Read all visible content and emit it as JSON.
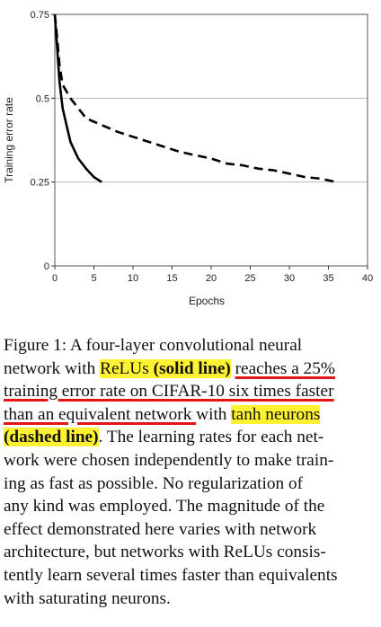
{
  "chart_data": {
    "type": "line",
    "title": "",
    "xlabel": "Epochs",
    "ylabel": "Training error rate",
    "xlim": [
      0,
      40
    ],
    "ylim": [
      0,
      0.75
    ],
    "x_ticks": [
      "0",
      "5",
      "10",
      "15",
      "20",
      "25",
      "30",
      "35",
      "40"
    ],
    "y_ticks": [
      "0",
      "0.25",
      "0.5",
      "0.75"
    ],
    "grid": "horizontal",
    "series": [
      {
        "style": "solid",
        "x": [
          0,
          0.3,
          0.6,
          1,
          1.5,
          2,
          3,
          4,
          5,
          6
        ],
        "y": [
          0.75,
          0.65,
          0.55,
          0.47,
          0.42,
          0.37,
          0.32,
          0.29,
          0.265,
          0.25
        ]
      },
      {
        "style": "dashed",
        "x": [
          0,
          0.3,
          0.6,
          1,
          2,
          3,
          4,
          5,
          6,
          8,
          10,
          12,
          14,
          16,
          18,
          20,
          22,
          24,
          26,
          28,
          30,
          32,
          34,
          36
        ],
        "y": [
          0.75,
          0.68,
          0.6,
          0.54,
          0.5,
          0.47,
          0.44,
          0.43,
          0.42,
          0.4,
          0.385,
          0.37,
          0.355,
          0.34,
          0.33,
          0.32,
          0.305,
          0.3,
          0.29,
          0.285,
          0.275,
          0.265,
          0.26,
          0.25
        ]
      }
    ]
  },
  "caption": {
    "lines": [
      "Figure 1: A four-layer convolutional neural",
      "network with ReLUs (solid line) reaches a 25%",
      "training error rate on CIFAR-10 six times faster",
      "than an equivalent network with tanh neurons",
      "(dashed line). The learning rates for each net-",
      "work were chosen independently to make train-",
      "ing as fast as possible.  No regularization of",
      "any kind was employed. The magnitude of the",
      "effect demonstrated here varies with network",
      "architecture, but networks with ReLUs consis-",
      "tently learn several times faster than equivalents",
      "with saturating neurons."
    ]
  }
}
